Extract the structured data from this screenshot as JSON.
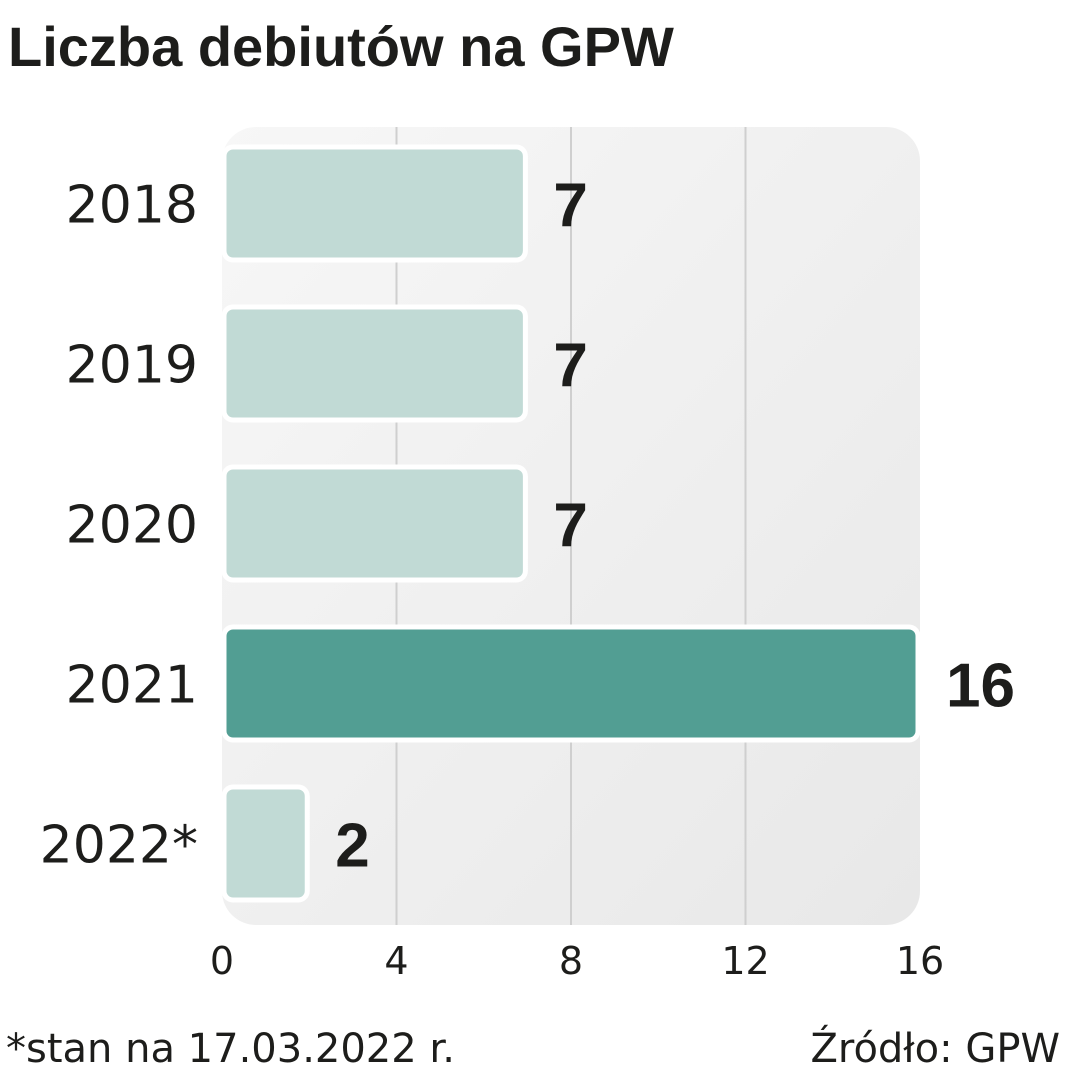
{
  "chart_data": {
    "type": "bar",
    "orientation": "horizontal",
    "title": "Liczba debiutów na GPW",
    "categories": [
      "2018",
      "2019",
      "2020",
      "2021",
      "2022*"
    ],
    "values": [
      7,
      7,
      7,
      16,
      2
    ],
    "highlight_index": 3,
    "xlim": [
      0,
      16
    ],
    "xticks": [
      0,
      4,
      8,
      12,
      16
    ],
    "grid": "vertical",
    "colors": {
      "bar": "#c1dad5",
      "highlight": "#529e93",
      "background": "#efefef",
      "grid": "#cfcfcf"
    },
    "footnote": "*stan na 17.03.2022 r.",
    "source": "Źródło: GPW"
  }
}
